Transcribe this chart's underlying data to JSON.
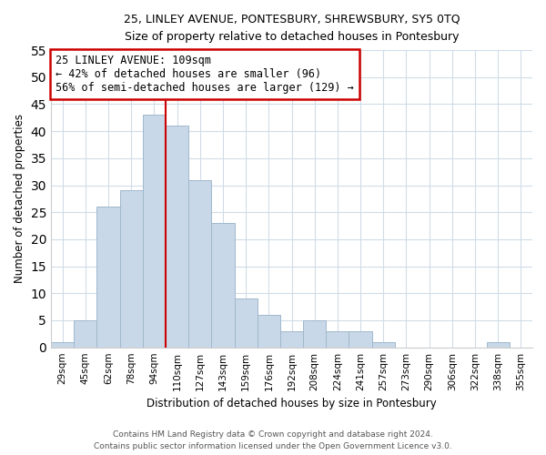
{
  "title": "25, LINLEY AVENUE, PONTESBURY, SHREWSBURY, SY5 0TQ",
  "subtitle": "Size of property relative to detached houses in Pontesbury",
  "bar_labels": [
    "29sqm",
    "45sqm",
    "62sqm",
    "78sqm",
    "94sqm",
    "110sqm",
    "127sqm",
    "143sqm",
    "159sqm",
    "176sqm",
    "192sqm",
    "208sqm",
    "224sqm",
    "241sqm",
    "257sqm",
    "273sqm",
    "290sqm",
    "306sqm",
    "322sqm",
    "338sqm",
    "355sqm"
  ],
  "bar_values": [
    1,
    5,
    26,
    29,
    43,
    41,
    31,
    23,
    9,
    6,
    3,
    5,
    3,
    3,
    1,
    0,
    0,
    0,
    0,
    1,
    0
  ],
  "bar_color": "#c8d8e8",
  "bar_edge_color": "#a0b8cc",
  "vline_x_index": 5,
  "vline_color": "#cc0000",
  "xlabel": "Distribution of detached houses by size in Pontesbury",
  "ylabel": "Number of detached properties",
  "ylim": [
    0,
    55
  ],
  "yticks": [
    0,
    5,
    10,
    15,
    20,
    25,
    30,
    35,
    40,
    45,
    50,
    55
  ],
  "annotation_title": "25 LINLEY AVENUE: 109sqm",
  "annotation_line1": "← 42% of detached houses are smaller (96)",
  "annotation_line2": "56% of semi-detached houses are larger (129) →",
  "annotation_box_color": "#ffffff",
  "annotation_box_edge": "#cc0000",
  "footer_line1": "Contains HM Land Registry data © Crown copyright and database right 2024.",
  "footer_line2": "Contains public sector information licensed under the Open Government Licence v3.0.",
  "bg_color": "#ffffff",
  "grid_color": "#d0dce8"
}
